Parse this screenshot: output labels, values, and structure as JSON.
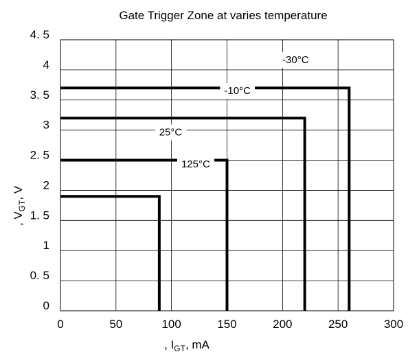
{
  "chart_data": {
    "type": "line",
    "title": "Gate Trigger Zone at varies temperature",
    "xlabel": {
      "prefix": ", I",
      "sub": "GT",
      "suffix": ",  mA"
    },
    "ylabel": {
      "prefix": ", V",
      "sub": "GT",
      "suffix": ",  V"
    },
    "xlim": [
      0,
      300
    ],
    "ylim": [
      0,
      4.5
    ],
    "x_ticks": [
      0,
      50,
      100,
      150,
      200,
      250,
      300
    ],
    "x_tick_labels": [
      "0",
      "50",
      "100",
      "150",
      "200",
      "250",
      "300"
    ],
    "y_ticks": [
      0,
      0.5,
      1,
      1.5,
      2,
      2.5,
      3,
      3.5,
      4,
      4.5
    ],
    "y_tick_labels": [
      "0",
      "0. 5",
      "1",
      "1. 5",
      "2",
      "2. 5",
      "3",
      "3. 5",
      "4",
      "4. 5"
    ],
    "grid": true,
    "series": [
      {
        "name": "-30°C",
        "igt_max": 260,
        "vgt_max": 3.7,
        "x": [
          0,
          260,
          260
        ],
        "y": [
          3.7,
          3.7,
          0
        ]
      },
      {
        "name": "-10°C",
        "igt_max": 220,
        "vgt_max": 3.2,
        "x": [
          0,
          220,
          220
        ],
        "y": [
          3.2,
          3.2,
          0
        ]
      },
      {
        "name": "25°C",
        "igt_max": 150,
        "vgt_max": 2.5,
        "x": [
          0,
          150,
          150
        ],
        "y": [
          2.5,
          2.5,
          0
        ]
      },
      {
        "name": "125°C",
        "igt_max": 89,
        "vgt_max": 1.9,
        "x": [
          0,
          89,
          89
        ],
        "y": [
          1.9,
          1.9,
          0
        ]
      }
    ]
  }
}
